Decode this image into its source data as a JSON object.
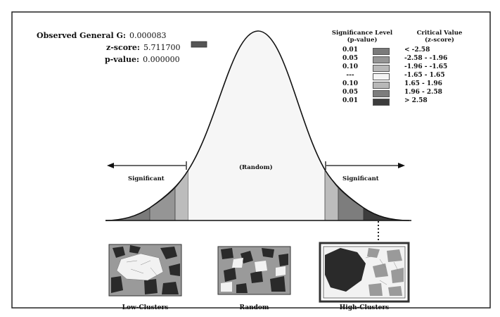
{
  "stats": {
    "observed_label": "Observed General G:",
    "observed_value": "0.000083",
    "zscore_label": "z-score:",
    "zscore_value": "5.711700",
    "pvalue_label": "p-value:",
    "pvalue_value": "0.000000"
  },
  "legend": {
    "sig_header_line1": "Significance Level",
    "sig_header_line2": "(p-value)",
    "crit_header_line1": "Critical Value",
    "crit_header_line2": "(z-score)",
    "rows": [
      {
        "p": "0.01",
        "z": "< -2.58",
        "color": "#7a7a7a"
      },
      {
        "p": "0.05",
        "z": "-2.58 - -1.96",
        "color": "#959595"
      },
      {
        "p": "0.10",
        "z": "-1.96 - -1.65",
        "color": "#b8b8b8"
      },
      {
        "p": "---",
        "z": "-1.65 - 1.65",
        "color": "#f4f4f4"
      },
      {
        "p": "0.10",
        "z": "1.65 - 1.96",
        "color": "#b8b8b8"
      },
      {
        "p": "0.05",
        "z": "1.96 - 2.58",
        "color": "#7d7d7d"
      },
      {
        "p": "0.01",
        "z": "> 2.58",
        "color": "#3c3c3c"
      }
    ]
  },
  "curve": {
    "left_label": "Significant",
    "center_label": "(Random)",
    "right_label": "Significant"
  },
  "maps": [
    {
      "caption": "Low-Clusters"
    },
    {
      "caption": "Random"
    },
    {
      "caption": "High-Clusters"
    }
  ],
  "colors": {
    "zscore_swatch": "#555555",
    "map_dark": "#2a2a2a",
    "map_mid": "#9a9a9a",
    "map_light": "#f2f2f2"
  }
}
